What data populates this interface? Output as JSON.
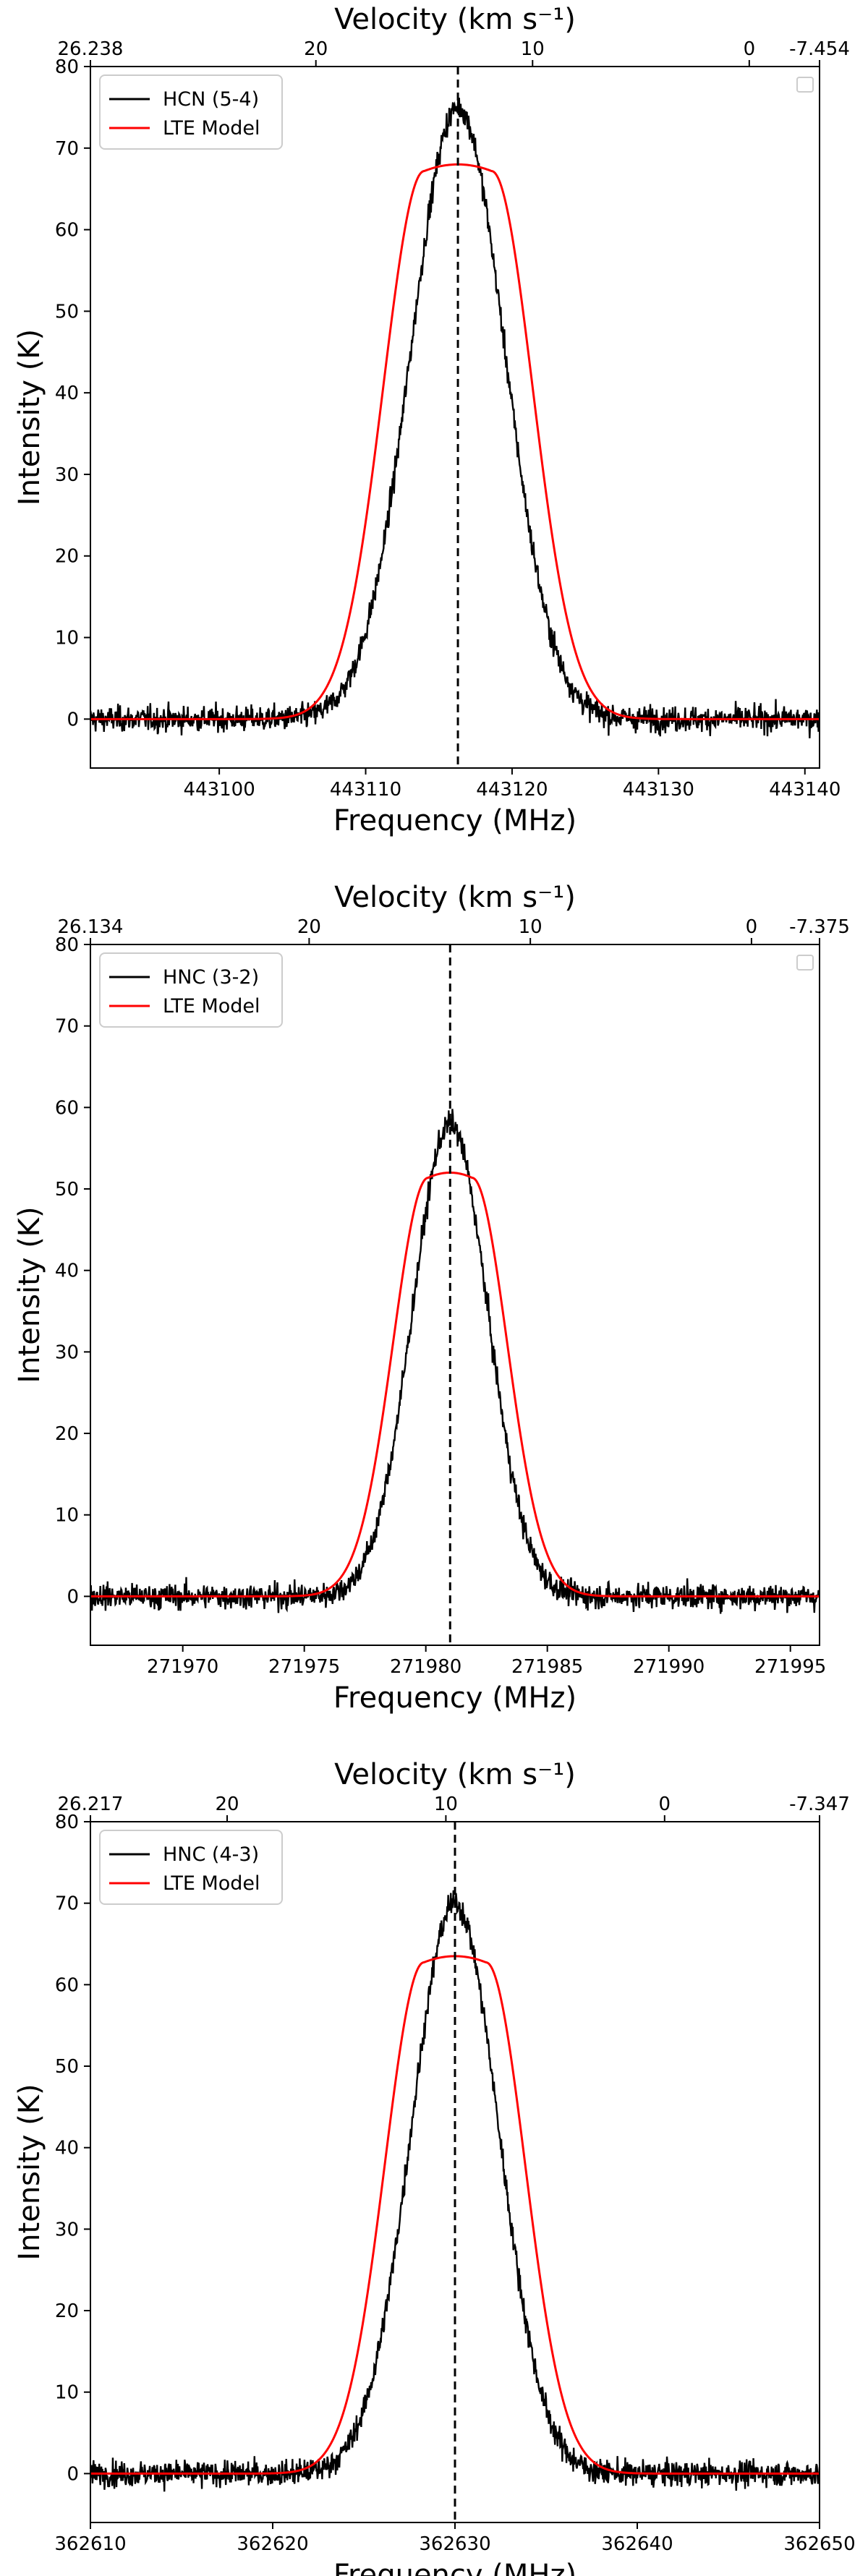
{
  "chart_data": [
    {
      "type": "line",
      "xlabel": "Frequency (MHz)",
      "ylabel": "Intensity (K)",
      "top_xlabel": "Velocity (km s⁻¹)",
      "xlim": [
        443091.2,
        443141.0
      ],
      "ylim": [
        -6,
        80
      ],
      "x_ticks": [
        443100,
        443110,
        443120,
        443130,
        443140
      ],
      "x_tick_labels": [
        "443100",
        "443110",
        "443120",
        "443130",
        "443140"
      ],
      "y_ticks": [
        0,
        10,
        20,
        30,
        40,
        50,
        60,
        70,
        80
      ],
      "y_tick_labels": [
        "0",
        "10",
        "20",
        "30",
        "40",
        "50",
        "60",
        "70",
        "80"
      ],
      "top_ticks": [
        {
          "freq": 443091.2,
          "label": "26.238"
        },
        {
          "freq": 443106.6,
          "label": "20"
        },
        {
          "freq": 443121.4,
          "label": "10"
        },
        {
          "freq": 443136.2,
          "label": "0"
        },
        {
          "freq": 443141.0,
          "label": "-7.454"
        }
      ],
      "line_freq": 443116.3,
      "legend_position": "top-left",
      "series": [
        {
          "name": "HCN (5-4)",
          "color": "#000000",
          "kind": "observed",
          "peak": 75,
          "center": 443116.3,
          "sigma": 3.2,
          "noise": 1.1
        },
        {
          "name": "LTE Model",
          "color": "#ff0000",
          "kind": "model",
          "peak": 68,
          "center": 443116.3,
          "sigma": 3.0,
          "flat": 2.3
        }
      ]
    },
    {
      "type": "line",
      "xlabel": "Frequency (MHz)",
      "ylabel": "Intensity (K)",
      "top_xlabel": "Velocity (km s⁻¹)",
      "xlim": [
        271966.2,
        271996.2
      ],
      "ylim": [
        -6,
        80
      ],
      "x_ticks": [
        271970,
        271975,
        271980,
        271985,
        271990,
        271995
      ],
      "x_tick_labels": [
        "271970",
        "271975",
        "271980",
        "271985",
        "271990",
        "271995"
      ],
      "y_ticks": [
        0,
        10,
        20,
        30,
        40,
        50,
        60,
        70,
        80
      ],
      "y_tick_labels": [
        "0",
        "10",
        "20",
        "30",
        "40",
        "50",
        "60",
        "70",
        "80"
      ],
      "top_ticks": [
        {
          "freq": 271966.2,
          "label": "26.134"
        },
        {
          "freq": 271975.2,
          "label": "20"
        },
        {
          "freq": 271984.3,
          "label": "10"
        },
        {
          "freq": 271993.4,
          "label": "0"
        },
        {
          "freq": 271996.2,
          "label": "-7.375"
        }
      ],
      "line_freq": 271981.0,
      "legend_position": "top-left",
      "series": [
        {
          "name": "HNC (3-2)",
          "color": "#000000",
          "kind": "observed",
          "peak": 58,
          "center": 271981.0,
          "sigma": 1.55,
          "noise": 1.1
        },
        {
          "name": "LTE Model",
          "color": "#ff0000",
          "kind": "model",
          "peak": 52,
          "center": 271981.0,
          "sigma": 1.55,
          "flat": 0.9
        }
      ]
    },
    {
      "type": "line",
      "xlabel": "Frequency (MHz)",
      "ylabel": "Intensity (K)",
      "top_xlabel": "Velocity (km s⁻¹)",
      "xlim": [
        362610,
        362650
      ],
      "ylim": [
        -6,
        80
      ],
      "x_ticks": [
        362610,
        362620,
        362630,
        362640,
        362650
      ],
      "x_tick_labels": [
        "362610",
        "362620",
        "362630",
        "362640",
        "362650"
      ],
      "y_ticks": [
        0,
        10,
        20,
        30,
        40,
        50,
        60,
        70,
        80
      ],
      "y_tick_labels": [
        "0",
        "10",
        "20",
        "30",
        "40",
        "50",
        "60",
        "70",
        "80"
      ],
      "top_ticks": [
        {
          "freq": 362610,
          "label": "26.217"
        },
        {
          "freq": 362617.5,
          "label": "20"
        },
        {
          "freq": 362629.5,
          "label": "10"
        },
        {
          "freq": 362641.5,
          "label": "0"
        },
        {
          "freq": 362650,
          "label": "-7.347"
        }
      ],
      "line_freq": 362630.0,
      "legend_position": "top-left",
      "series": [
        {
          "name": "HNC (4-3)",
          "color": "#000000",
          "kind": "observed",
          "peak": 70,
          "center": 362630.0,
          "sigma": 2.4,
          "noise": 1.1
        },
        {
          "name": "LTE Model",
          "color": "#ff0000",
          "kind": "model",
          "peak": 63.5,
          "center": 362630.0,
          "sigma": 2.3,
          "flat": 1.7
        }
      ]
    }
  ]
}
